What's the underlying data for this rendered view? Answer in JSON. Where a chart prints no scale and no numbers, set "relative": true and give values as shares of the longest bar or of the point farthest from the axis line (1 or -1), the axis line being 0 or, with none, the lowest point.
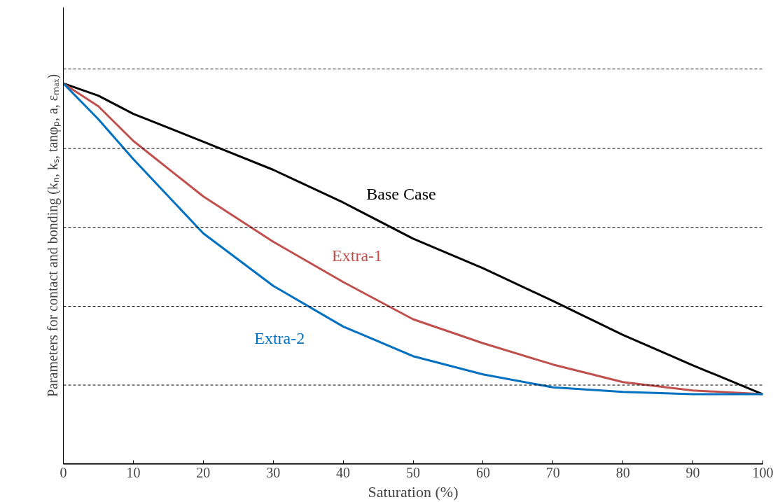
{
  "chart_data": {
    "type": "line",
    "relative": true,
    "xlabel": "Saturation (%)",
    "ylabel": "Parameters for contact and bonding (kₙ, kₛ, tanφₚ, a, εₘₐₓ)",
    "xlim": [
      0,
      100
    ],
    "xticks": [
      0,
      10,
      20,
      30,
      40,
      50,
      60,
      70,
      80,
      90,
      100
    ],
    "x": [
      0,
      5,
      10,
      20,
      30,
      40,
      50,
      60,
      70,
      80,
      90,
      100
    ],
    "series": [
      {
        "name": "Base Case",
        "color": "#000000",
        "values": [
          1,
          0.968,
          0.92,
          0.847,
          0.773,
          0.687,
          0.592,
          0.514,
          0.428,
          0.339,
          0.259,
          0.183
        ]
      },
      {
        "name": "Extra-1",
        "color": "#c0504d",
        "values": [
          1,
          0.94,
          0.849,
          0.703,
          0.584,
          0.478,
          0.38,
          0.317,
          0.261,
          0.215,
          0.193,
          0.183
        ]
      },
      {
        "name": "Extra-2",
        "color": "#0070c0",
        "values": [
          1,
          0.906,
          0.801,
          0.606,
          0.468,
          0.361,
          0.283,
          0.235,
          0.201,
          0.189,
          0.183,
          0.183
        ]
      }
    ],
    "ref_lines": [
      {
        "axis": "y",
        "value": 1.038,
        "line_style": "dashed"
      },
      {
        "axis": "y",
        "value": 0.829,
        "line_style": "dashed"
      },
      {
        "axis": "y",
        "value": 0.622,
        "line_style": "dashed"
      },
      {
        "axis": "y",
        "value": 0.414,
        "line_style": "dashed"
      },
      {
        "axis": "y",
        "value": 0.207,
        "line_style": "dashed"
      }
    ],
    "grid": false,
    "marker": "none",
    "line_style": "solid"
  }
}
